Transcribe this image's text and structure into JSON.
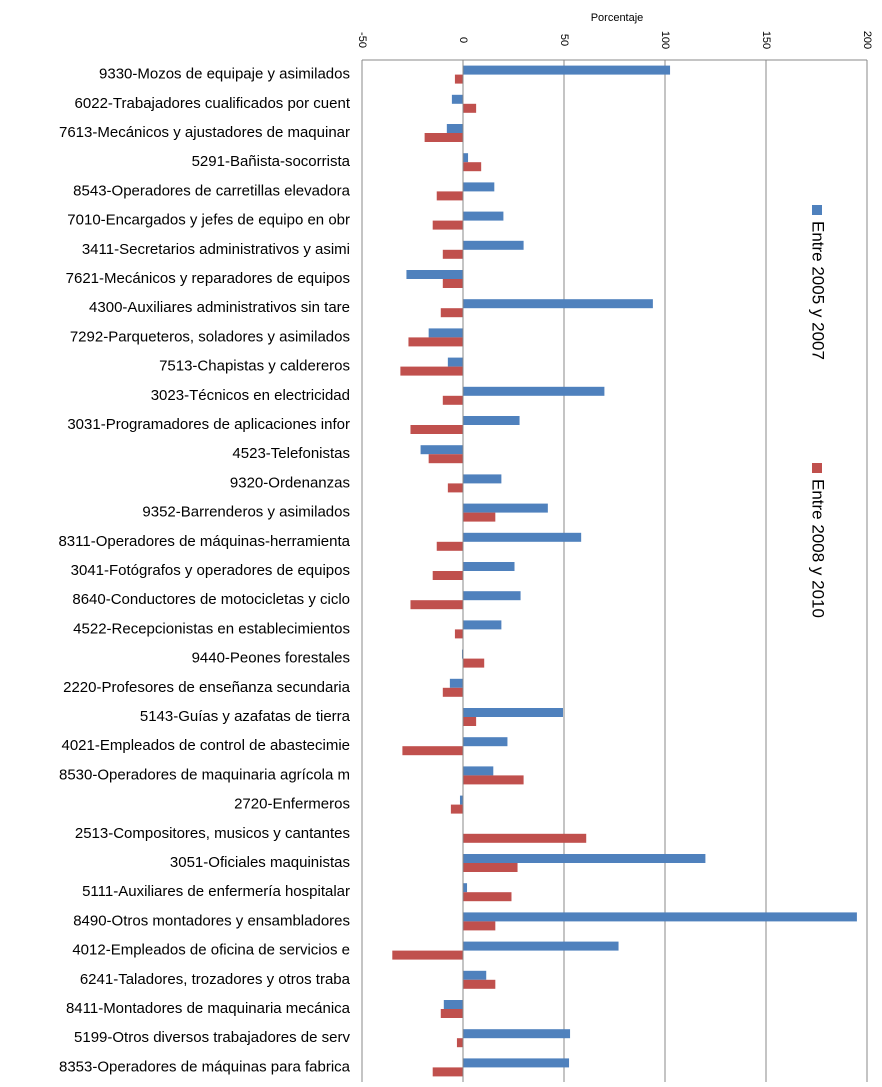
{
  "chart_data": {
    "type": "barh",
    "title": "Porcentaje",
    "categories": [
      "9330-Mozos de equipaje y asimilados",
      "6022-Trabajadores cualificados por cuent",
      "7613-Mecánicos y ajustadores de maquinar",
      "5291-Bañista-socorrista",
      "8543-Operadores de carretillas elevadora",
      "7010-Encargados y jefes de equipo en obr",
      "3411-Secretarios administrativos y asimi",
      "7621-Mecánicos y reparadores de equipos",
      "4300-Auxiliares administrativos sin tare",
      "7292-Parqueteros, soladores y asimilados",
      "7513-Chapistas y caldereros",
      "3023-Técnicos en electricidad",
      "3031-Programadores de aplicaciones infor",
      "4523-Telefonistas",
      "9320-Ordenanzas",
      "9352-Barrenderos y asimilados",
      "8311-Operadores de máquinas-herramienta",
      "3041-Fotógrafos y operadores de equipos",
      "8640-Conductores de motocicletas y ciclo",
      "4522-Recepcionistas en establecimientos",
      "9440-Peones forestales",
      "2220-Profesores de enseñanza secundaria",
      "5143-Guías y azafatas de tierra",
      "4021-Empleados de control de abastecimie",
      "8530-Operadores de maquinaria agrícola m",
      "2720-Enfermeros",
      "2513-Compositores, musicos y cantantes",
      "3051-Oficiales maquinistas",
      "5111-Auxiliares de enfermería hospitalar",
      "8490-Otros montadores y ensambladores",
      "4012-Empleados de oficina de servicios e",
      "6241-Taladores, trozadores y otros traba",
      "8411-Montadores de maquinaria mecánica",
      "5199-Otros diversos trabajadores de serv",
      "8353-Operadores de máquinas para fabrica"
    ],
    "series": [
      {
        "name": "Entre 2005 y 2007",
        "color": "#4f81bd",
        "values": [
          102.5,
          -5.5,
          -8,
          2.5,
          15.5,
          20,
          30,
          -28,
          94,
          -17,
          -7.5,
          70,
          28,
          -21,
          19,
          42,
          58.5,
          25.5,
          28.5,
          19,
          -0.5,
          -6.5,
          49.5,
          22,
          15,
          -1.5,
          0,
          120,
          2,
          195,
          77,
          11.5,
          -9.5,
          53,
          52.5
        ]
      },
      {
        "name": "Entre 2008 y 2010",
        "color": "#c0504d",
        "values": [
          -4,
          6.5,
          -19,
          9,
          -13,
          -15,
          -10,
          -10,
          -11,
          -27,
          -31,
          -10,
          -26,
          -17,
          -7.5,
          16,
          -13,
          -15,
          -26,
          -4,
          10.5,
          -10,
          6.5,
          -30,
          30,
          -6,
          61,
          27,
          24,
          16,
          -35,
          16,
          -11,
          -3,
          -15
        ]
      }
    ],
    "xlim": [
      -50,
      200
    ],
    "xticks": [
      -50,
      0,
      50,
      100,
      150,
      200
    ],
    "grid": true,
    "legend": "right"
  }
}
